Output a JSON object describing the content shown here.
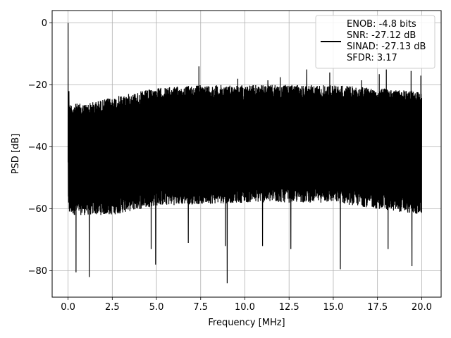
{
  "chart_data": {
    "type": "line",
    "title": "",
    "xlabel": "Frequency [MHz]",
    "ylabel": "PSD [dB]",
    "xlim": [
      -0.9,
      21.1
    ],
    "ylim": [
      -88.5,
      4.0
    ],
    "xticks": [
      0.0,
      2.5,
      5.0,
      7.5,
      10.0,
      12.5,
      15.0,
      17.5,
      20.0
    ],
    "xtick_labels": [
      "0.0",
      "2.5",
      "5.0",
      "7.5",
      "10.0",
      "12.5",
      "15.0",
      "17.5",
      "20.0"
    ],
    "yticks": [
      0,
      -20,
      -40,
      -60,
      -80
    ],
    "ytick_labels": [
      "0",
      "−20",
      "−40",
      "−60",
      "−80"
    ],
    "grid": true,
    "legend_position": "top-right",
    "series": [
      {
        "name": "ENOB: -4.8 bits\nSNR: -27.12 dB\nSINAD: -27.13 dB\nSFDR: 3.17",
        "color": "#000000",
        "x_range": [
          0.0,
          20.0
        ],
        "envelope_upper": [
          [
            0.0,
            -26
          ],
          [
            1.0,
            -26
          ],
          [
            2.5,
            -24
          ],
          [
            5.0,
            -21
          ],
          [
            7.5,
            -20
          ],
          [
            10.0,
            -20
          ],
          [
            12.5,
            -20
          ],
          [
            15.0,
            -20
          ],
          [
            17.5,
            -21
          ],
          [
            20.0,
            -22
          ]
        ],
        "envelope_lower": [
          [
            0.0,
            -62
          ],
          [
            2.5,
            -62
          ],
          [
            5.0,
            -59
          ],
          [
            10.0,
            -58
          ],
          [
            15.0,
            -58
          ],
          [
            20.0,
            -62
          ]
        ],
        "peak": {
          "x": 0.0,
          "y": 0.0
        },
        "spikes_up": [
          [
            0.05,
            -22
          ],
          [
            6.8,
            -15.5
          ],
          [
            7.4,
            -14
          ],
          [
            9.0,
            -19
          ],
          [
            9.6,
            -18
          ],
          [
            11.3,
            -18.5
          ],
          [
            12.0,
            -17.5
          ],
          [
            13.5,
            -15
          ],
          [
            14.8,
            -16
          ],
          [
            16.6,
            -18.5
          ],
          [
            17.6,
            -16.5
          ],
          [
            18.0,
            -15
          ],
          [
            19.4,
            -15.5
          ],
          [
            19.95,
            -17
          ]
        ],
        "spikes_down": [
          [
            0.45,
            -80.5
          ],
          [
            1.2,
            -82
          ],
          [
            4.7,
            -73
          ],
          [
            4.95,
            -78
          ],
          [
            6.8,
            -71
          ],
          [
            8.9,
            -72
          ],
          [
            9.0,
            -84
          ],
          [
            11.0,
            -72
          ],
          [
            12.6,
            -73
          ],
          [
            15.4,
            -79.5
          ],
          [
            18.1,
            -73
          ],
          [
            19.45,
            -78.5
          ]
        ]
      }
    ]
  }
}
